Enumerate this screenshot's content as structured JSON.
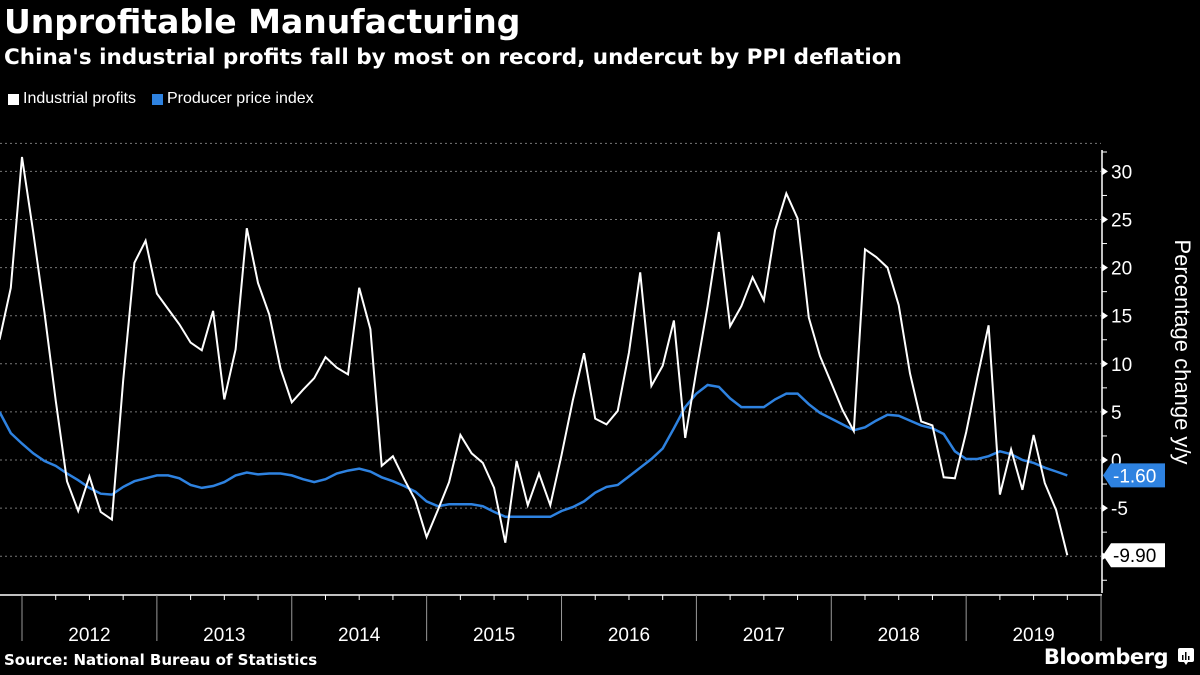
{
  "header": {
    "title": "Unprofitable Manufacturing",
    "subtitle": "China's industrial profits fall by most on record, undercut by PPI deflation"
  },
  "legend": [
    {
      "label": "Industrial profits",
      "color": "#ffffff"
    },
    {
      "label": "Producer price index",
      "color": "#2e82e0"
    }
  ],
  "footer": {
    "source": "Source: National Bureau of Statistics",
    "brand": "Bloomberg"
  },
  "chart_data": {
    "type": "line",
    "title": "Unprofitable Manufacturing",
    "subtitle": "China's industrial profits fall by most on record, undercut by PPI deflation",
    "xlabel": "",
    "ylabel": "Percentage change y/y",
    "ylim": [
      -14,
      33
    ],
    "yticks": [
      -5,
      0,
      5,
      10,
      15,
      20,
      25,
      30
    ],
    "ytick_labels": [
      "-5",
      "0",
      "5",
      "10",
      "15",
      "20",
      "25",
      "30"
    ],
    "x_start": "2011-11",
    "x_end": "2019-10",
    "xtick_labels": [
      "2012",
      "2013",
      "2014",
      "2015",
      "2016",
      "2017",
      "2018",
      "2019"
    ],
    "grid": true,
    "legend_position": "top-left",
    "series": [
      {
        "name": "Industrial profits",
        "color": "#ffffff",
        "end_label": "-9.90",
        "values": [
          12.5,
          17.9,
          31.5,
          23.7,
          15.3,
          6.2,
          -2.2,
          -5.3,
          -1.7,
          -5.4,
          -6.2,
          8.3,
          20.5,
          22.8,
          17.3,
          15.7,
          14.1,
          12.2,
          11.4,
          15.5,
          6.3,
          11.5,
          24.1,
          18.4,
          15.1,
          9.5,
          6.0,
          7.3,
          8.5,
          10.7,
          9.6,
          8.9,
          17.9,
          13.6,
          -0.6,
          0.4,
          -2.0,
          -4.2,
          -8.0,
          -5.2,
          -2.3,
          2.6,
          0.7,
          -0.3,
          -2.9,
          -8.6,
          -0.1,
          -4.7,
          -1.4,
          -4.7,
          0.5,
          6.2,
          11.1,
          4.3,
          3.7,
          5.1,
          11.2,
          19.5,
          7.7,
          9.8,
          14.5,
          2.3,
          9.3,
          16.0,
          23.7,
          13.9,
          16.0,
          19.0,
          16.6,
          23.9,
          27.7,
          25.1,
          14.8,
          10.8,
          8.0,
          5.2,
          3.0,
          21.9,
          21.1,
          20.0,
          16.1,
          9.0,
          4.0,
          3.6,
          -1.8,
          -1.9,
          2.9,
          8.6,
          14.0,
          -3.6,
          1.1,
          -3.1,
          2.6,
          -2.4,
          -5.2,
          -9.9
        ]
      },
      {
        "name": "Producer price index",
        "color": "#2e82e0",
        "end_label": "-1.60",
        "values": [
          5.0,
          2.8,
          1.7,
          0.7,
          -0.1,
          -0.6,
          -1.4,
          -2.1,
          -2.9,
          -3.5,
          -3.6,
          -2.8,
          -2.2,
          -1.9,
          -1.6,
          -1.6,
          -1.9,
          -2.6,
          -2.9,
          -2.7,
          -2.3,
          -1.6,
          -1.3,
          -1.5,
          -1.4,
          -1.4,
          -1.6,
          -2.0,
          -2.3,
          -2.0,
          -1.4,
          -1.1,
          -0.9,
          -1.2,
          -1.8,
          -2.2,
          -2.7,
          -3.3,
          -4.3,
          -4.8,
          -4.6,
          -4.6,
          -4.6,
          -4.8,
          -5.4,
          -5.9,
          -5.9,
          -5.9,
          -5.9,
          -5.9,
          -5.3,
          -4.9,
          -4.3,
          -3.4,
          -2.8,
          -2.6,
          -1.7,
          -0.8,
          0.1,
          1.2,
          3.3,
          5.5,
          6.9,
          7.8,
          7.6,
          6.4,
          5.5,
          5.5,
          5.5,
          6.3,
          6.9,
          6.9,
          5.8,
          4.9,
          4.3,
          3.7,
          3.1,
          3.4,
          4.1,
          4.7,
          4.6,
          4.1,
          3.6,
          3.3,
          2.7,
          0.9,
          0.1,
          0.1,
          0.4,
          0.9,
          0.6,
          0.0,
          -0.3,
          -0.8,
          -1.2,
          -1.6
        ]
      }
    ]
  }
}
